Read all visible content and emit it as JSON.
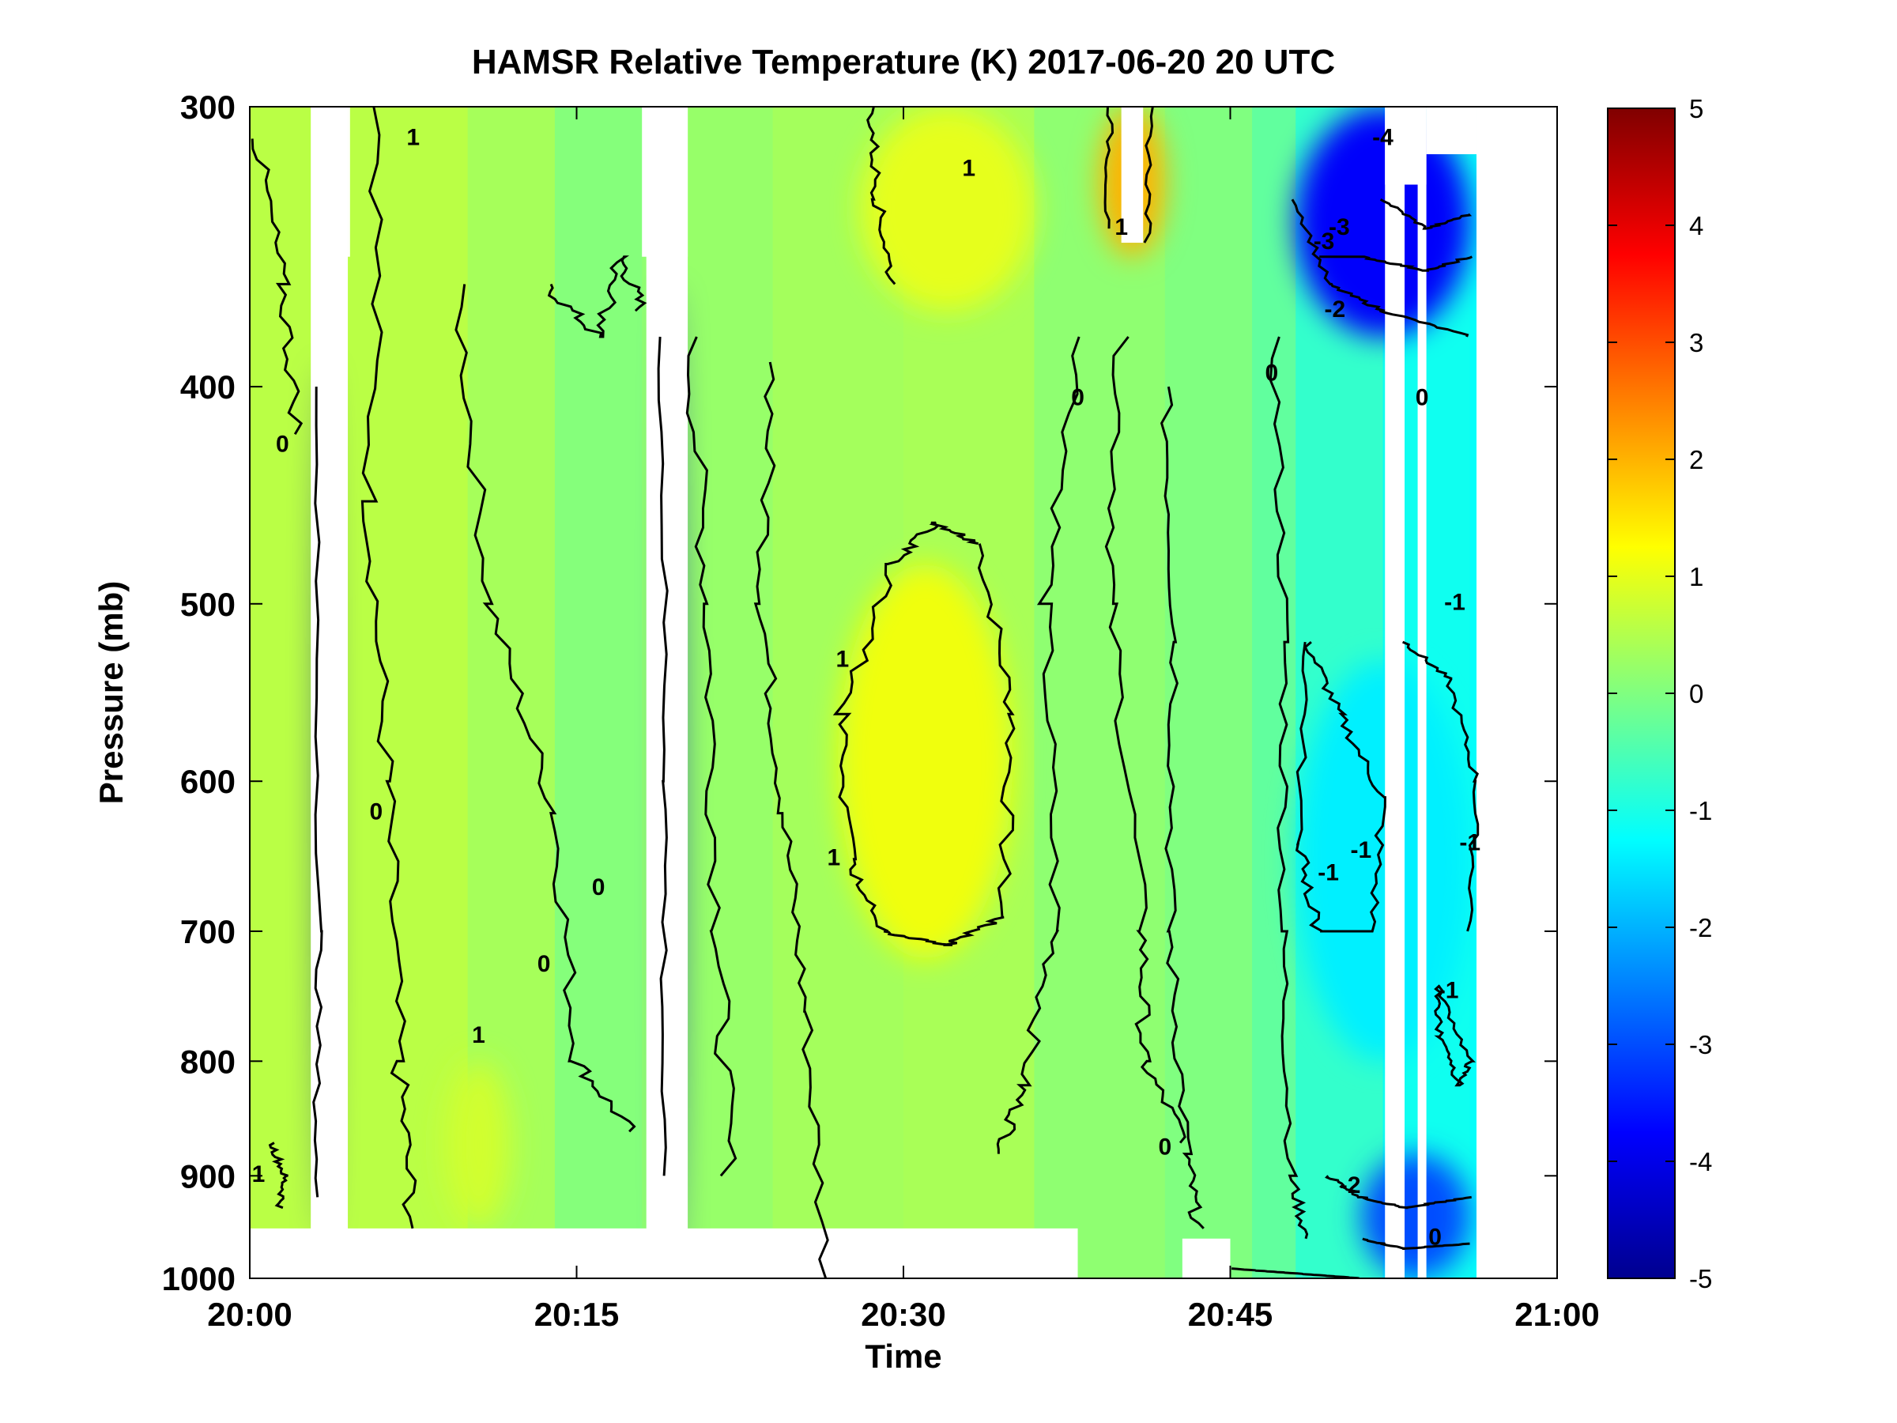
{
  "chart_data": {
    "type": "heatmap",
    "title": "HAMSR  Relative Temperature (K) 2017-06-20 20 UTC",
    "xlabel": "Time",
    "ylabel": "Pressure (mb)",
    "x_ticks": [
      "20:00",
      "20:15",
      "20:30",
      "20:45",
      "21:00"
    ],
    "x_range_minutes": [
      0,
      60
    ],
    "y_ticks": [
      300,
      400,
      500,
      600,
      700,
      800,
      900,
      1000
    ],
    "ylim": [
      1000,
      300
    ],
    "y_scale": "log",
    "y_reversed": true,
    "colorbar": {
      "ticks": [
        5,
        4,
        3,
        2,
        1,
        0,
        -1,
        -2,
        -3,
        -4,
        -5
      ],
      "range": [
        -5,
        5
      ],
      "colormap": [
        "#00008f",
        "#0000ff",
        "#0080ff",
        "#00ffff",
        "#80ff80",
        "#ffff00",
        "#ff8000",
        "#ff0000",
        "#800000"
      ]
    },
    "contour_labels": [
      "1",
      "1",
      "1",
      "1",
      "1",
      "1",
      "1",
      "-1",
      "-1",
      "-1",
      "-1",
      "-1",
      "-2",
      "-2",
      "-3",
      "-3",
      "-4",
      "0",
      "0",
      "0",
      "0",
      "0",
      "0",
      "0",
      "0",
      "0"
    ],
    "contour_label_values": [
      1,
      1,
      1,
      1,
      1,
      1,
      1,
      -1,
      -1,
      -1,
      -1,
      -1,
      -2,
      -2,
      -3,
      -3,
      -4,
      0,
      0,
      0,
      0,
      0,
      0,
      0,
      0,
      0
    ],
    "contour_label_positions": [
      [
        0.4,
        900
      ],
      [
        7.5,
        310
      ],
      [
        10.5,
        780
      ],
      [
        26.8,
        650
      ],
      [
        27.2,
        530
      ],
      [
        33,
        320
      ],
      [
        40,
        340
      ],
      [
        49.5,
        660
      ],
      [
        51,
        645
      ],
      [
        55,
        745
      ],
      [
        55.3,
        500
      ],
      [
        56,
        640
      ],
      [
        49.8,
        370
      ],
      [
        50.5,
        910
      ],
      [
        49.3,
        345
      ],
      [
        50,
        340
      ],
      [
        52,
        310
      ],
      [
        1.5,
        425
      ],
      [
        5.8,
        620
      ],
      [
        16,
        670
      ],
      [
        13.5,
        725
      ],
      [
        42,
        875
      ],
      [
        54.4,
        960
      ],
      [
        53.8,
        405
      ],
      [
        46.9,
        395
      ],
      [
        38,
        405
      ]
    ],
    "field_regions": [
      {
        "name": "warm core",
        "time_minutes": [
          27,
          35
        ],
        "pressure_mb": [
          480,
          720
        ],
        "value_k": 1.1
      },
      {
        "name": "upper warm",
        "time_minutes": [
          28,
          36
        ],
        "pressure_mb": [
          300,
          370
        ],
        "value_k": 1.0
      },
      {
        "name": "warm band upper",
        "time_minutes": [
          39,
          42
        ],
        "pressure_mb": [
          300,
          350
        ],
        "value_k": 2.0
      },
      {
        "name": "cold upper right",
        "time_minutes": [
          48,
          56
        ],
        "pressure_mb": [
          300,
          380
        ],
        "value_k": -3.8
      },
      {
        "name": "cold mid right",
        "time_minutes": [
          48,
          56
        ],
        "pressure_mb": [
          530,
          800
        ],
        "value_k": -1.4
      },
      {
        "name": "cold lower right",
        "time_minutes": [
          51,
          56
        ],
        "pressure_mb": [
          880,
          1000
        ],
        "value_k": -3.0
      },
      {
        "name": "cold column 20:03",
        "time_minutes": [
          3.2,
          3.6
        ],
        "pressure_mb": [
          390,
          960
        ],
        "value_k": -4.8
      },
      {
        "name": "cold column 20:19",
        "time_minutes": [
          19.2,
          19.7
        ],
        "pressure_mb": [
          360,
          1000
        ],
        "value_k": -4.5
      },
      {
        "name": "warm near surface 20:10",
        "time_minutes": [
          9,
          12
        ],
        "pressure_mb": [
          800,
          950
        ],
        "value_k": 0.8
      }
    ],
    "data_gaps_minutes": [
      [
        2.8,
        4.5
      ],
      [
        18.2,
        20.1
      ],
      [
        52.1,
        53.0
      ],
      [
        53.6,
        54.0
      ]
    ],
    "data_end_minutes": 56.3,
    "grid": false,
    "legend": "none"
  }
}
